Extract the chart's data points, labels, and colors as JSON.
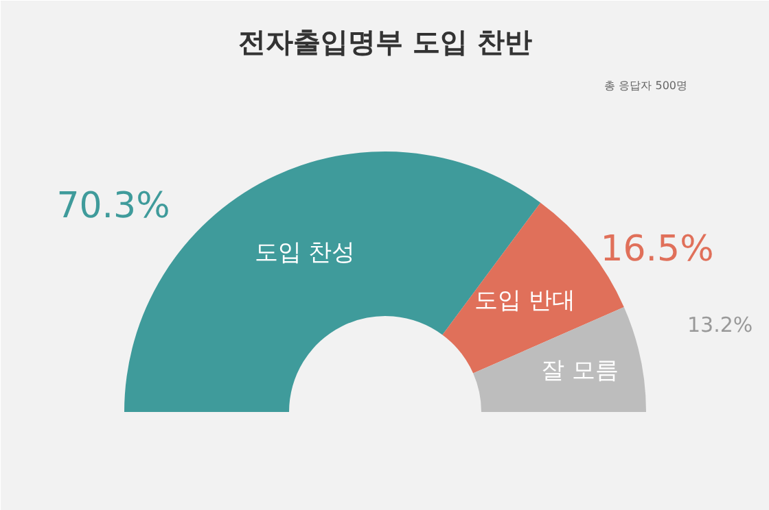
{
  "chart_data": {
    "type": "donut",
    "title": "전자출입명부 도입 찬반",
    "annotations": [
      "총 응답자 500명"
    ],
    "categories": [
      "도입 찬성",
      "도입 반대",
      "잘 모름"
    ],
    "values": [
      70.3,
      16.5,
      13.2
    ],
    "colors": [
      "#3f9b9b",
      "#e0705a",
      "#bdbdbd"
    ],
    "value_labels": [
      "70.3%",
      "16.5%",
      "13.2%"
    ]
  }
}
